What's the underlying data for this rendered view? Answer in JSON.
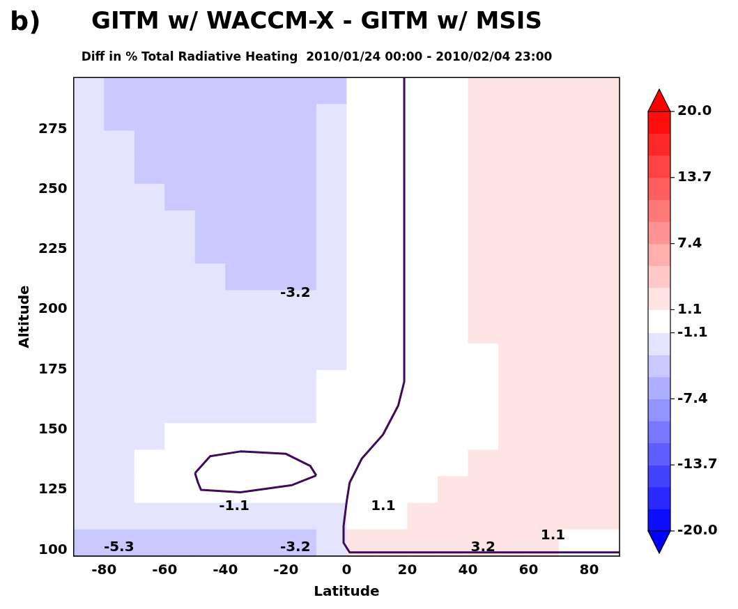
{
  "chart_data": {
    "type": "heatmap",
    "title": "GITM w/ WACCM-X - GITM w/ MSIS",
    "subtitle": "Diff in % Total Radiative Heating  2010/01/24 00:00 - 2010/02/04 23:00",
    "xlabel": "Latitude",
    "ylabel": "Altitude",
    "xlim": [
      -90,
      90
    ],
    "ylim": [
      97.5,
      296.5
    ],
    "xticks": [
      -80,
      -60,
      -40,
      -20,
      0,
      20,
      40,
      60,
      80
    ],
    "yticks": [
      100,
      125,
      150,
      175,
      200,
      225,
      250,
      275
    ],
    "clim": [
      -20,
      20
    ],
    "cticks": [
      {
        "value": -20,
        "label": "-20.0"
      },
      -13.7,
      -7.4,
      -1.1,
      1.1,
      7.4,
      13.7,
      {
        "value": 20,
        "label": "20.0"
      }
    ],
    "cells": [
      [
        -2,
        -4,
        -4,
        -4,
        -4,
        -4,
        -4,
        -4,
        -4,
        0,
        0,
        0,
        0,
        2,
        2,
        2,
        2,
        2
      ],
      [
        -2,
        -4,
        -4,
        -4,
        -4,
        -4,
        -4,
        -4,
        -2,
        0,
        0,
        0,
        0,
        2,
        2,
        2,
        2,
        2
      ],
      [
        -2,
        -2,
        -4,
        -4,
        -4,
        -4,
        -4,
        -4,
        -2,
        0,
        0,
        0,
        0,
        2,
        2,
        2,
        2,
        2
      ],
      [
        -2,
        -2,
        -4,
        -4,
        -4,
        -4,
        -4,
        -4,
        -2,
        0,
        0,
        0,
        0,
        2,
        2,
        2,
        2,
        2
      ],
      [
        -2,
        -2,
        -2,
        -4,
        -4,
        -4,
        -4,
        -4,
        -2,
        0,
        0,
        0,
        0,
        2,
        2,
        2,
        2,
        2
      ],
      [
        -2,
        -2,
        -2,
        -2,
        -4,
        -4,
        -4,
        -4,
        -2,
        0,
        0,
        0,
        0,
        2,
        2,
        2,
        2,
        2
      ],
      [
        -2,
        -2,
        -2,
        -2,
        -4,
        -4,
        -4,
        -4,
        -2,
        0,
        0,
        0,
        0,
        2,
        2,
        2,
        2,
        2
      ],
      [
        -2,
        -2,
        -2,
        -2,
        -2,
        -4,
        -4,
        -4,
        -2,
        0,
        0,
        0,
        0,
        2,
        2,
        2,
        2,
        2
      ],
      [
        -2,
        -2,
        -2,
        -2,
        -2,
        -2,
        -2,
        -2,
        -2,
        0,
        0,
        0,
        0,
        2,
        2,
        2,
        2,
        2
      ],
      [
        -2,
        -2,
        -2,
        -2,
        -2,
        -2,
        -2,
        -2,
        -2,
        0,
        0,
        0,
        0,
        2,
        2,
        2,
        2,
        2
      ],
      [
        -2,
        -2,
        -2,
        -2,
        -2,
        -2,
        -2,
        -2,
        -2,
        0,
        0,
        0,
        0,
        0,
        2,
        2,
        2,
        2
      ],
      [
        -2,
        -2,
        -2,
        -2,
        -2,
        -2,
        -2,
        -2,
        0,
        0,
        0,
        0,
        0,
        0,
        2,
        2,
        2,
        2
      ],
      [
        -2,
        -2,
        -2,
        -2,
        -2,
        -2,
        -2,
        -2,
        0,
        0,
        0,
        0,
        0,
        0,
        2,
        2,
        2,
        2
      ],
      [
        -2,
        -2,
        -2,
        0,
        0,
        0,
        0,
        0,
        0,
        0,
        0,
        0,
        0,
        0,
        2,
        2,
        2,
        2
      ],
      [
        -2,
        -2,
        0,
        0,
        0,
        0,
        0,
        0,
        0,
        0,
        0,
        0,
        0,
        2,
        2,
        2,
        2,
        2
      ],
      [
        -2,
        -2,
        0,
        0,
        0,
        0,
        0,
        0,
        0,
        0,
        0,
        0,
        2,
        2,
        2,
        2,
        2,
        2
      ],
      [
        -2,
        -2,
        -2,
        -2,
        -2,
        -2,
        -2,
        -2,
        -2,
        0,
        0,
        2,
        2,
        2,
        2,
        2,
        2,
        2
      ],
      [
        -4,
        -4,
        -4,
        -4,
        -4,
        -4,
        -4,
        -4,
        -2,
        2,
        2,
        2,
        2,
        2,
        2,
        2,
        0,
        0
      ]
    ],
    "series": [
      {
        "type": "line",
        "color": "#3f0a5a",
        "x": [
          19,
          19,
          17,
          12,
          5,
          1,
          0,
          -1,
          -1,
          1,
          10,
          90
        ],
        "values": [
          296.5,
          170,
          160,
          148,
          138,
          128,
          120,
          110,
          103,
          99,
          99,
          99
        ]
      },
      {
        "type": "line",
        "color": "#3f0a5a",
        "x": [
          -50,
          -45,
          -35,
          -20,
          -12,
          -10
        ],
        "values": [
          132,
          139,
          141,
          140,
          135,
          131
        ]
      },
      {
        "type": "line",
        "color": "#3f0a5a",
        "x": [
          -50,
          -49,
          -48,
          -35,
          -18,
          -10
        ],
        "values": [
          132,
          128,
          125,
          124,
          127,
          131
        ]
      }
    ],
    "annotations": [
      "b)",
      "-3.2",
      "-1.1",
      "-5.3",
      "-3.2",
      "1.1",
      "3.2",
      "1.1"
    ]
  }
}
